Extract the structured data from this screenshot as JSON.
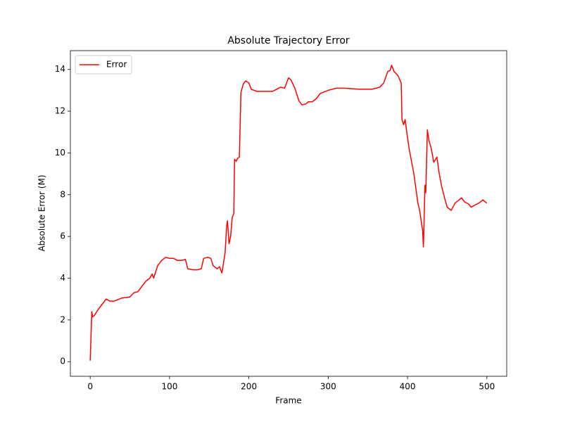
{
  "chart_data": {
    "type": "line",
    "title": "Absolute Trajectory Error",
    "x_label": "Frame",
    "y_label": "Absolute Error (M)",
    "x": [
      0,
      2,
      3,
      5,
      10,
      15,
      20,
      25,
      30,
      40,
      50,
      55,
      60,
      65,
      70,
      75,
      78,
      80,
      85,
      90,
      95,
      100,
      105,
      110,
      115,
      120,
      123,
      130,
      135,
      140,
      143,
      148,
      152,
      155,
      160,
      163,
      166,
      170,
      172,
      173,
      175,
      177,
      179,
      181,
      182,
      184,
      186,
      188,
      190,
      193,
      196,
      200,
      203,
      210,
      220,
      230,
      240,
      245,
      250,
      253,
      258,
      263,
      267,
      272,
      275,
      280,
      285,
      290,
      300,
      305,
      310,
      320,
      340,
      355,
      365,
      370,
      375,
      378,
      380,
      383,
      388,
      392,
      393,
      395,
      397,
      399,
      402,
      408,
      413,
      415,
      419,
      420,
      422,
      423,
      425,
      427,
      430,
      433,
      437,
      440,
      443,
      447,
      450,
      455,
      460,
      465,
      468,
      472,
      477,
      480,
      485,
      490,
      495,
      498,
      500
    ],
    "series": [
      {
        "name": "Error",
        "color": "#ff0000",
        "values": [
          0.05,
          2.4,
          2.15,
          2.2,
          2.5,
          2.75,
          3.0,
          2.9,
          2.9,
          3.05,
          3.1,
          3.3,
          3.35,
          3.6,
          3.85,
          4.0,
          4.2,
          4.0,
          4.6,
          4.85,
          5.0,
          4.95,
          4.95,
          4.85,
          4.85,
          4.9,
          4.45,
          4.4,
          4.4,
          4.45,
          4.95,
          5.0,
          4.95,
          4.6,
          4.45,
          4.55,
          4.25,
          5.2,
          6.5,
          6.75,
          5.65,
          6.0,
          6.9,
          7.1,
          9.7,
          9.6,
          9.75,
          9.8,
          12.9,
          13.3,
          13.45,
          13.35,
          13.05,
          12.95,
          12.95,
          12.95,
          13.15,
          13.1,
          13.6,
          13.5,
          13.1,
          12.5,
          12.3,
          12.35,
          12.45,
          12.45,
          12.6,
          12.85,
          13.0,
          13.05,
          13.1,
          13.1,
          13.05,
          13.05,
          13.15,
          13.35,
          13.9,
          13.95,
          14.2,
          13.9,
          13.7,
          13.35,
          11.6,
          11.35,
          11.6,
          11.0,
          10.2,
          9.0,
          7.6,
          7.3,
          6.3,
          5.5,
          8.45,
          8.1,
          11.1,
          10.6,
          10.2,
          9.55,
          9.8,
          9.0,
          8.4,
          7.8,
          7.4,
          7.25,
          7.6,
          7.75,
          7.85,
          7.65,
          7.55,
          7.4,
          7.5,
          7.6,
          7.75,
          7.65,
          7.6
        ]
      }
    ],
    "xlim": [
      -25,
      525
    ],
    "ylim": [
      -0.7,
      14.9
    ],
    "xticks": [
      0,
      100,
      200,
      300,
      400,
      500
    ],
    "yticks": [
      0,
      2,
      4,
      6,
      8,
      10,
      12,
      14
    ],
    "legend": "upper left"
  }
}
